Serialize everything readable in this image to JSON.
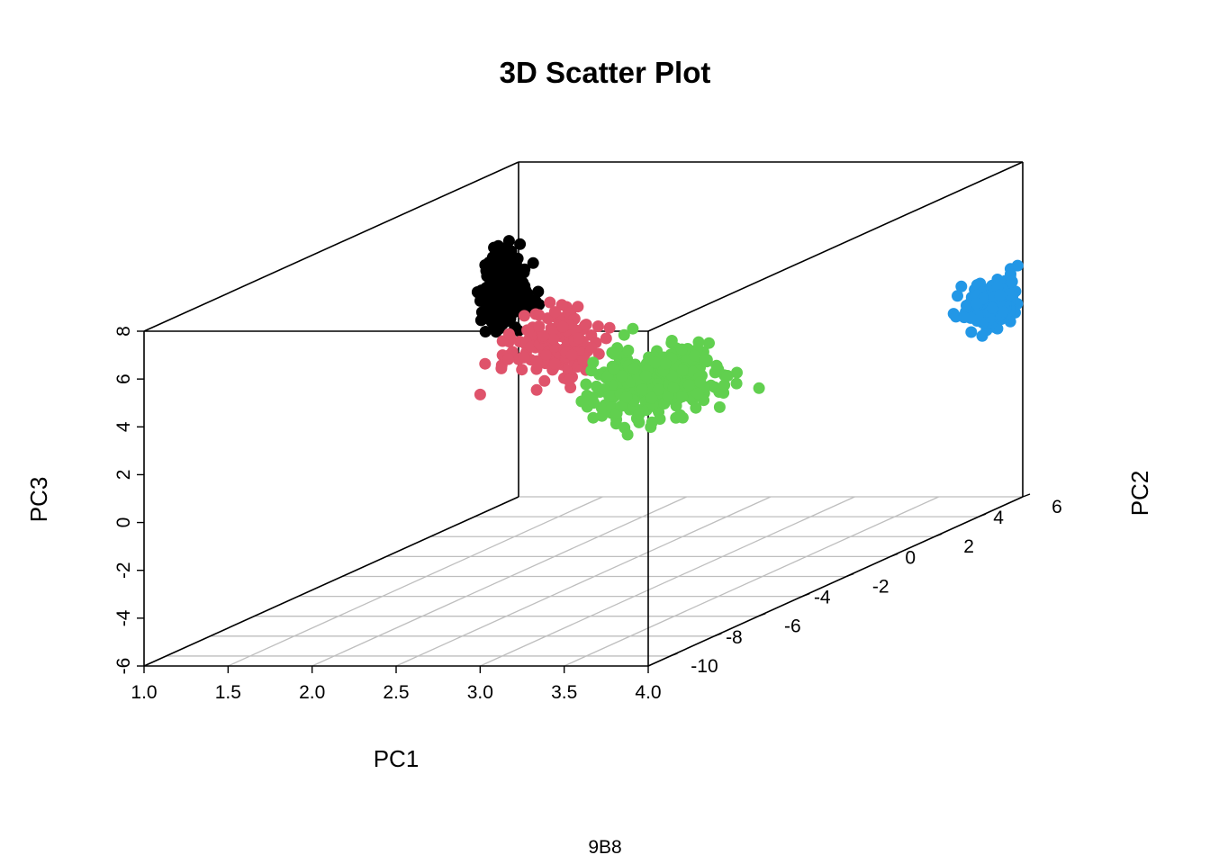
{
  "chart_data": {
    "type": "scatter",
    "dimensions": 3,
    "title": "3D Scatter Plot",
    "xlabel": "PC1",
    "ylabel": "PC2",
    "zlabel": "PC3",
    "xlim": [
      1.0,
      4.0
    ],
    "ylim": [
      -11,
      6
    ],
    "zlim": [
      -6,
      8
    ],
    "x_ticks": [
      "1.0",
      "1.5",
      "2.0",
      "2.5",
      "3.0",
      "3.5",
      "4.0"
    ],
    "y_ticks": [
      "-10",
      "-8",
      "-6",
      "-4",
      "-2",
      "0",
      "2",
      "4",
      "6"
    ],
    "z_ticks": [
      "-6",
      "-4",
      "-2",
      "0",
      "2",
      "4",
      "6",
      "8"
    ],
    "floor_grid": true,
    "box": true,
    "footer_text": "9B8",
    "series": [
      {
        "color": "#000000",
        "center": {
          "x": 1.0,
          "y": 5.0,
          "z": 3.0
        },
        "spread": {
          "x": 0.15,
          "y": 0.5,
          "z": 1.1
        },
        "count": 260
      },
      {
        "color": "#DF536B",
        "center": {
          "x": 2.0,
          "y": 0.0,
          "z": 3.0
        },
        "spread": {
          "x": 0.2,
          "y": 0.7,
          "z": 1.0
        },
        "count": 150
      },
      {
        "color": "#61D04F",
        "center": {
          "x": 3.0,
          "y": -3.0,
          "z": 2.5
        },
        "spread": {
          "x": 0.25,
          "y": 1.2,
          "z": 1.0
        },
        "count": 320
      },
      {
        "color": "#2297E6",
        "center": {
          "x": 4.0,
          "y": 5.0,
          "z": 2.5
        },
        "spread": {
          "x": 0.12,
          "y": 0.5,
          "z": 0.7
        },
        "count": 220
      }
    ]
  }
}
